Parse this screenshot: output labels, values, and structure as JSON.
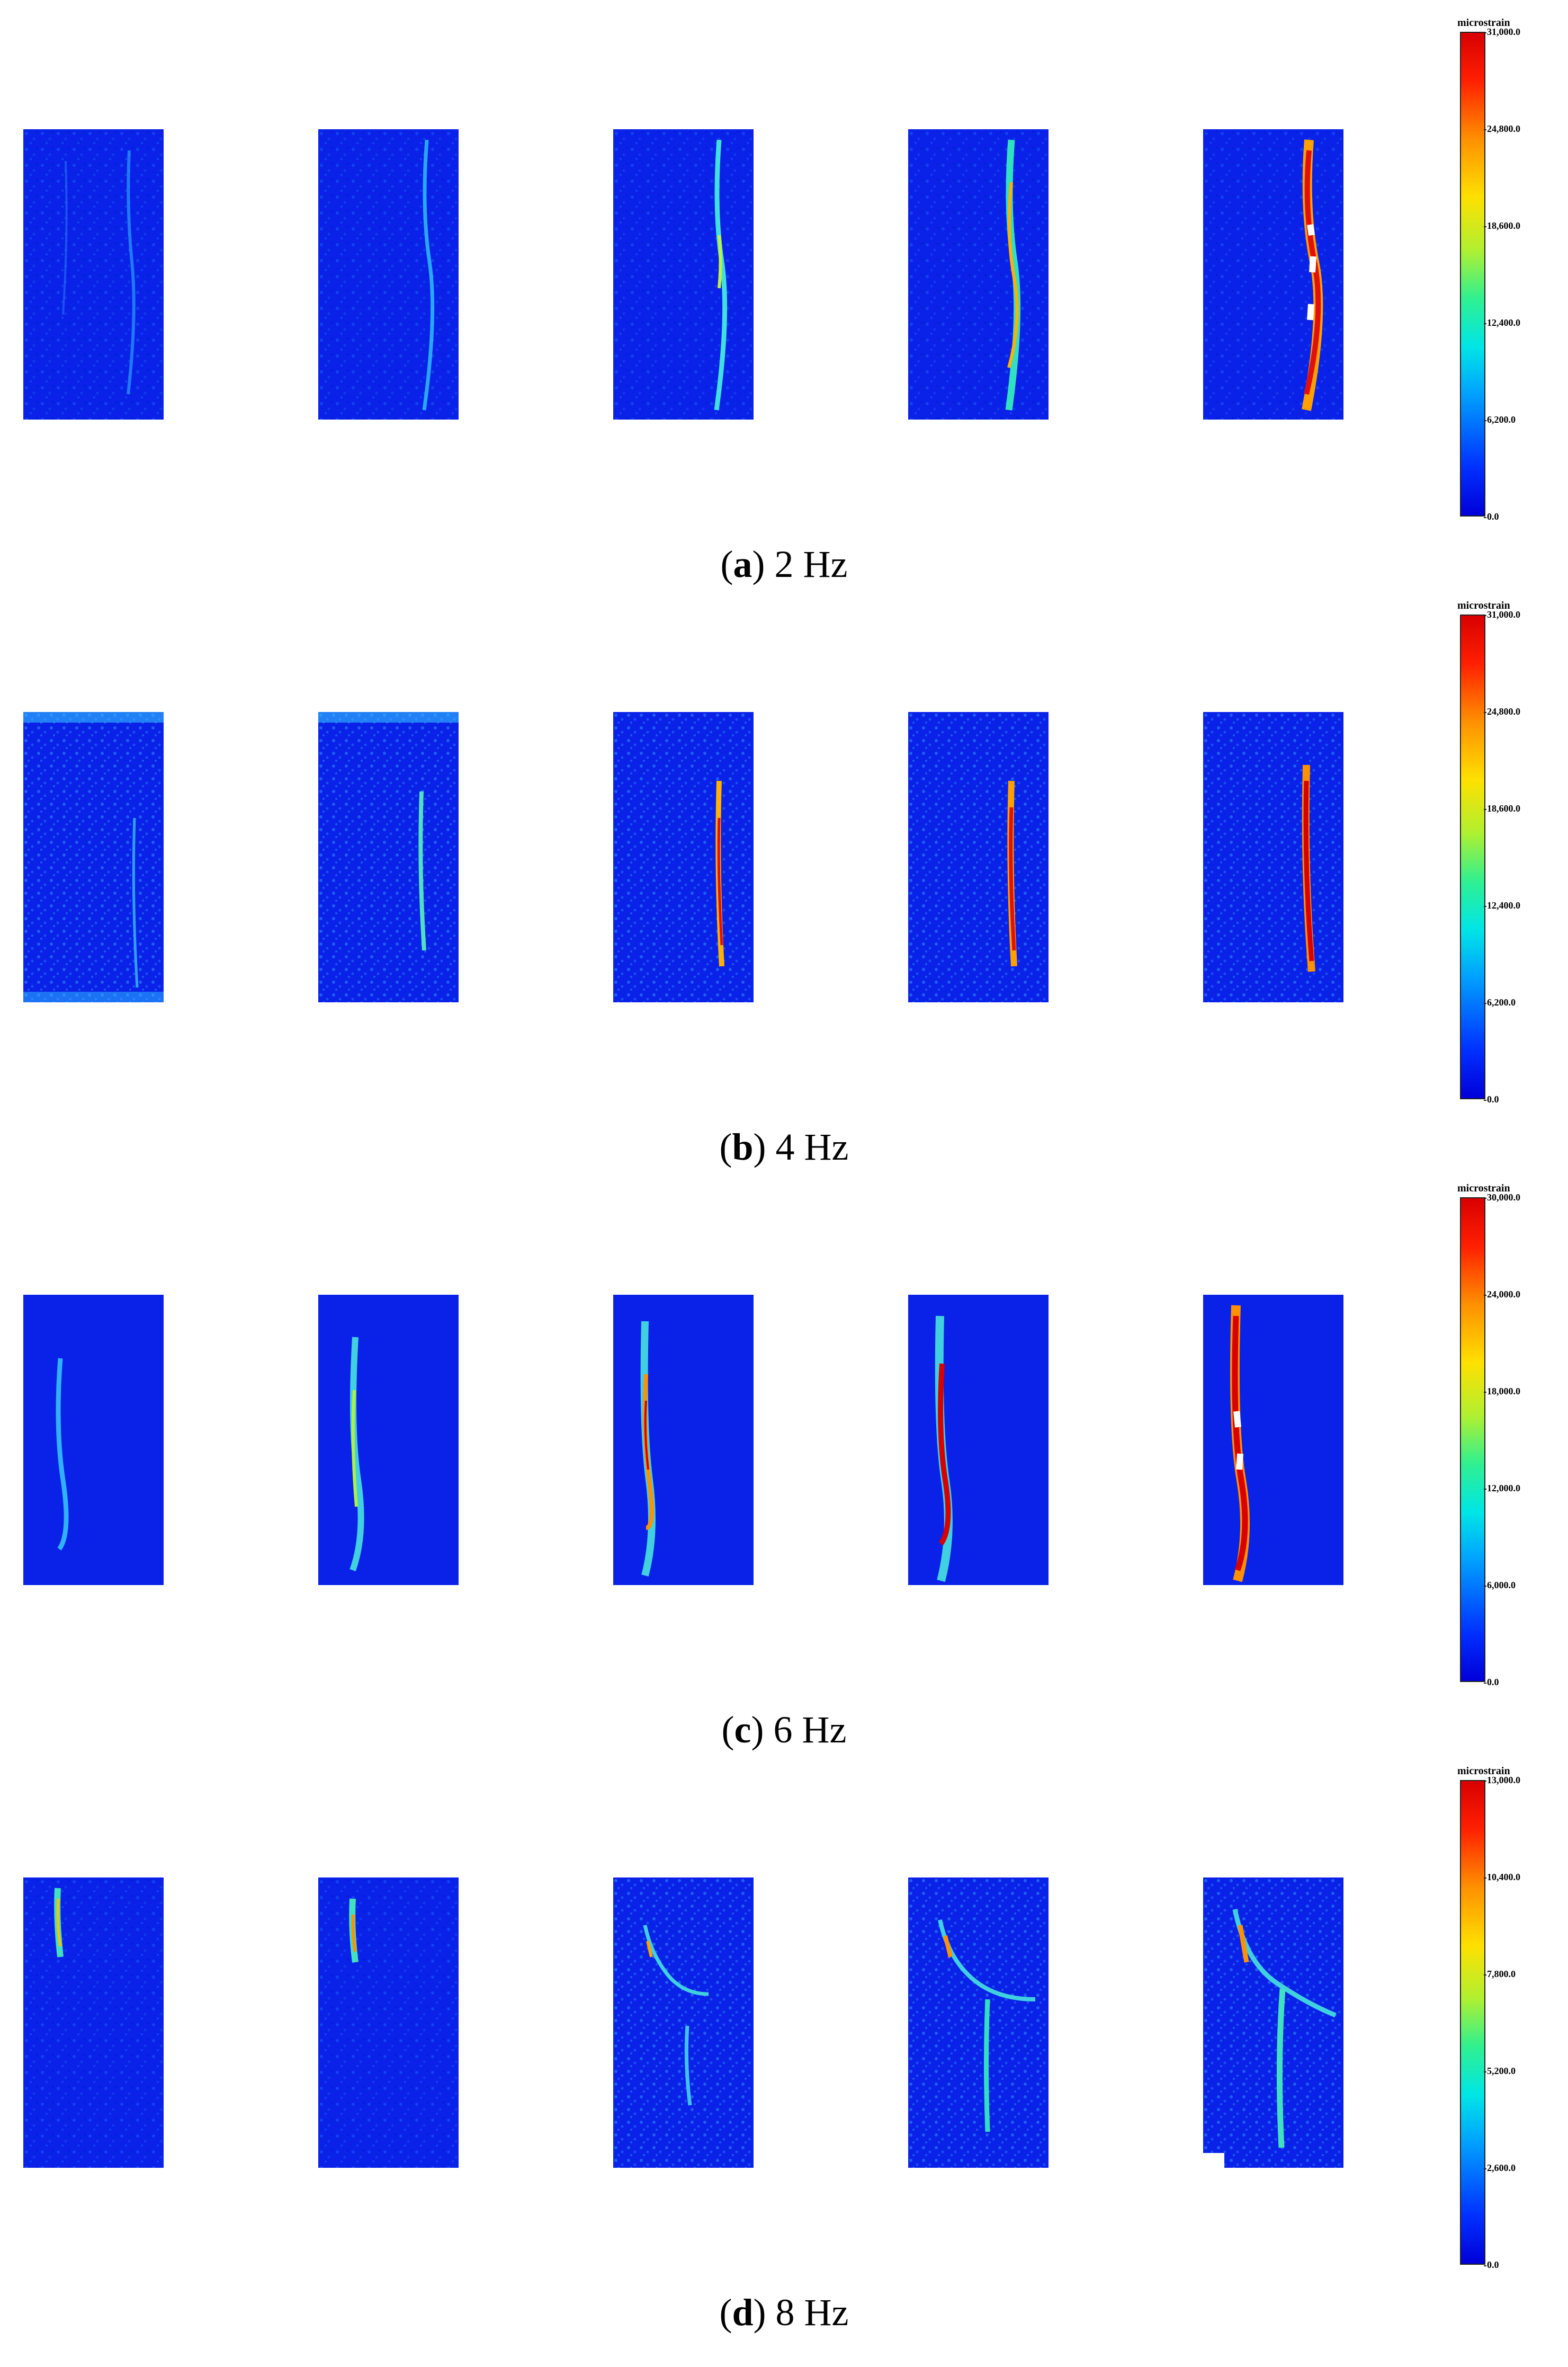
{
  "panels": [
    {
      "letter": "a",
      "freq": "2 Hz",
      "colorbar": {
        "title": "microstrain",
        "ticks": [
          "31,000.0",
          "24,800.0",
          "18,600.0",
          "12,400.0",
          "6,200.0",
          "0.0"
        ]
      }
    },
    {
      "letter": "b",
      "freq": "4 Hz",
      "colorbar": {
        "title": "microstrain",
        "ticks": [
          "31,000.0",
          "24,800.0",
          "18,600.0",
          "12,400.0",
          "6,200.0",
          "0.0"
        ]
      }
    },
    {
      "letter": "c",
      "freq": "6 Hz",
      "colorbar": {
        "title": "microstrain",
        "ticks": [
          "30,000.0",
          "24,000.0",
          "18,000.0",
          "12,000.0",
          "6,000.0",
          "0.0"
        ]
      }
    },
    {
      "letter": "d",
      "freq": "8 Hz",
      "colorbar": {
        "title": "microstrain",
        "ticks": [
          "13,000.0",
          "10,400.0",
          "7,800.0",
          "5,200.0",
          "2,600.0",
          "0.0"
        ]
      }
    }
  ],
  "colors": {
    "background_strain": "#0a1ee6",
    "low": "#0000d8",
    "high": "#d80000"
  }
}
